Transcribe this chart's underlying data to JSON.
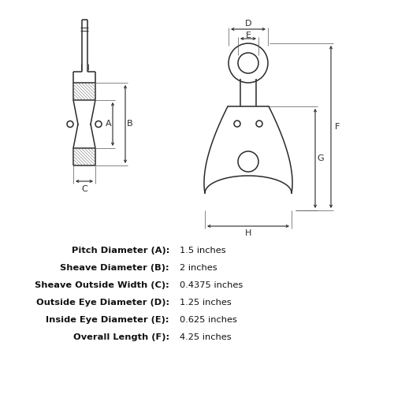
{
  "bg_color": "#ffffff",
  "lc": "#2a2a2a",
  "specs": [
    {
      "label": "Pitch Diameter (A):",
      "value": "1.5 inches"
    },
    {
      "label": "Sheave Diameter (B):",
      "value": "2 inches"
    },
    {
      "label": "Sheave Outside Width (C):",
      "value": "0.4375 inches"
    },
    {
      "label": "Outside Eye Diameter (D):",
      "value": "1.25 inches"
    },
    {
      "label": "Inside Eye Diameter (E):",
      "value": "0.625 inches"
    },
    {
      "label": "Overall Length (F):",
      "value": "4.25 inches"
    }
  ]
}
